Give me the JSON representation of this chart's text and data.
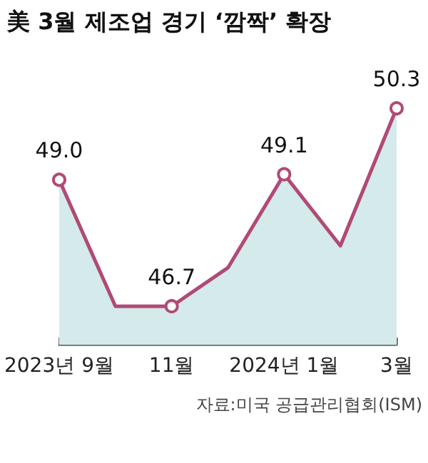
{
  "chart_data": {
    "type": "area",
    "title": "美 3월 제조업 경기 ‘깜짝’ 확장",
    "categories": [
      "2023년 9월",
      null,
      "11월",
      null,
      "2024년 1월",
      null,
      "3월"
    ],
    "series": [
      {
        "color": "#b04a76",
        "values": [
          49.0,
          46.7,
          46.7,
          47.4,
          49.1,
          47.8,
          50.3
        ],
        "value_labels": [
          "49.0",
          null,
          "46.7",
          null,
          "49.1",
          null,
          "50.3"
        ]
      }
    ],
    "marker": "circle",
    "grid": false,
    "tick_labels": "x",
    "annotations": [
      "자료:미국 공급관리협회(ISM)"
    ]
  }
}
